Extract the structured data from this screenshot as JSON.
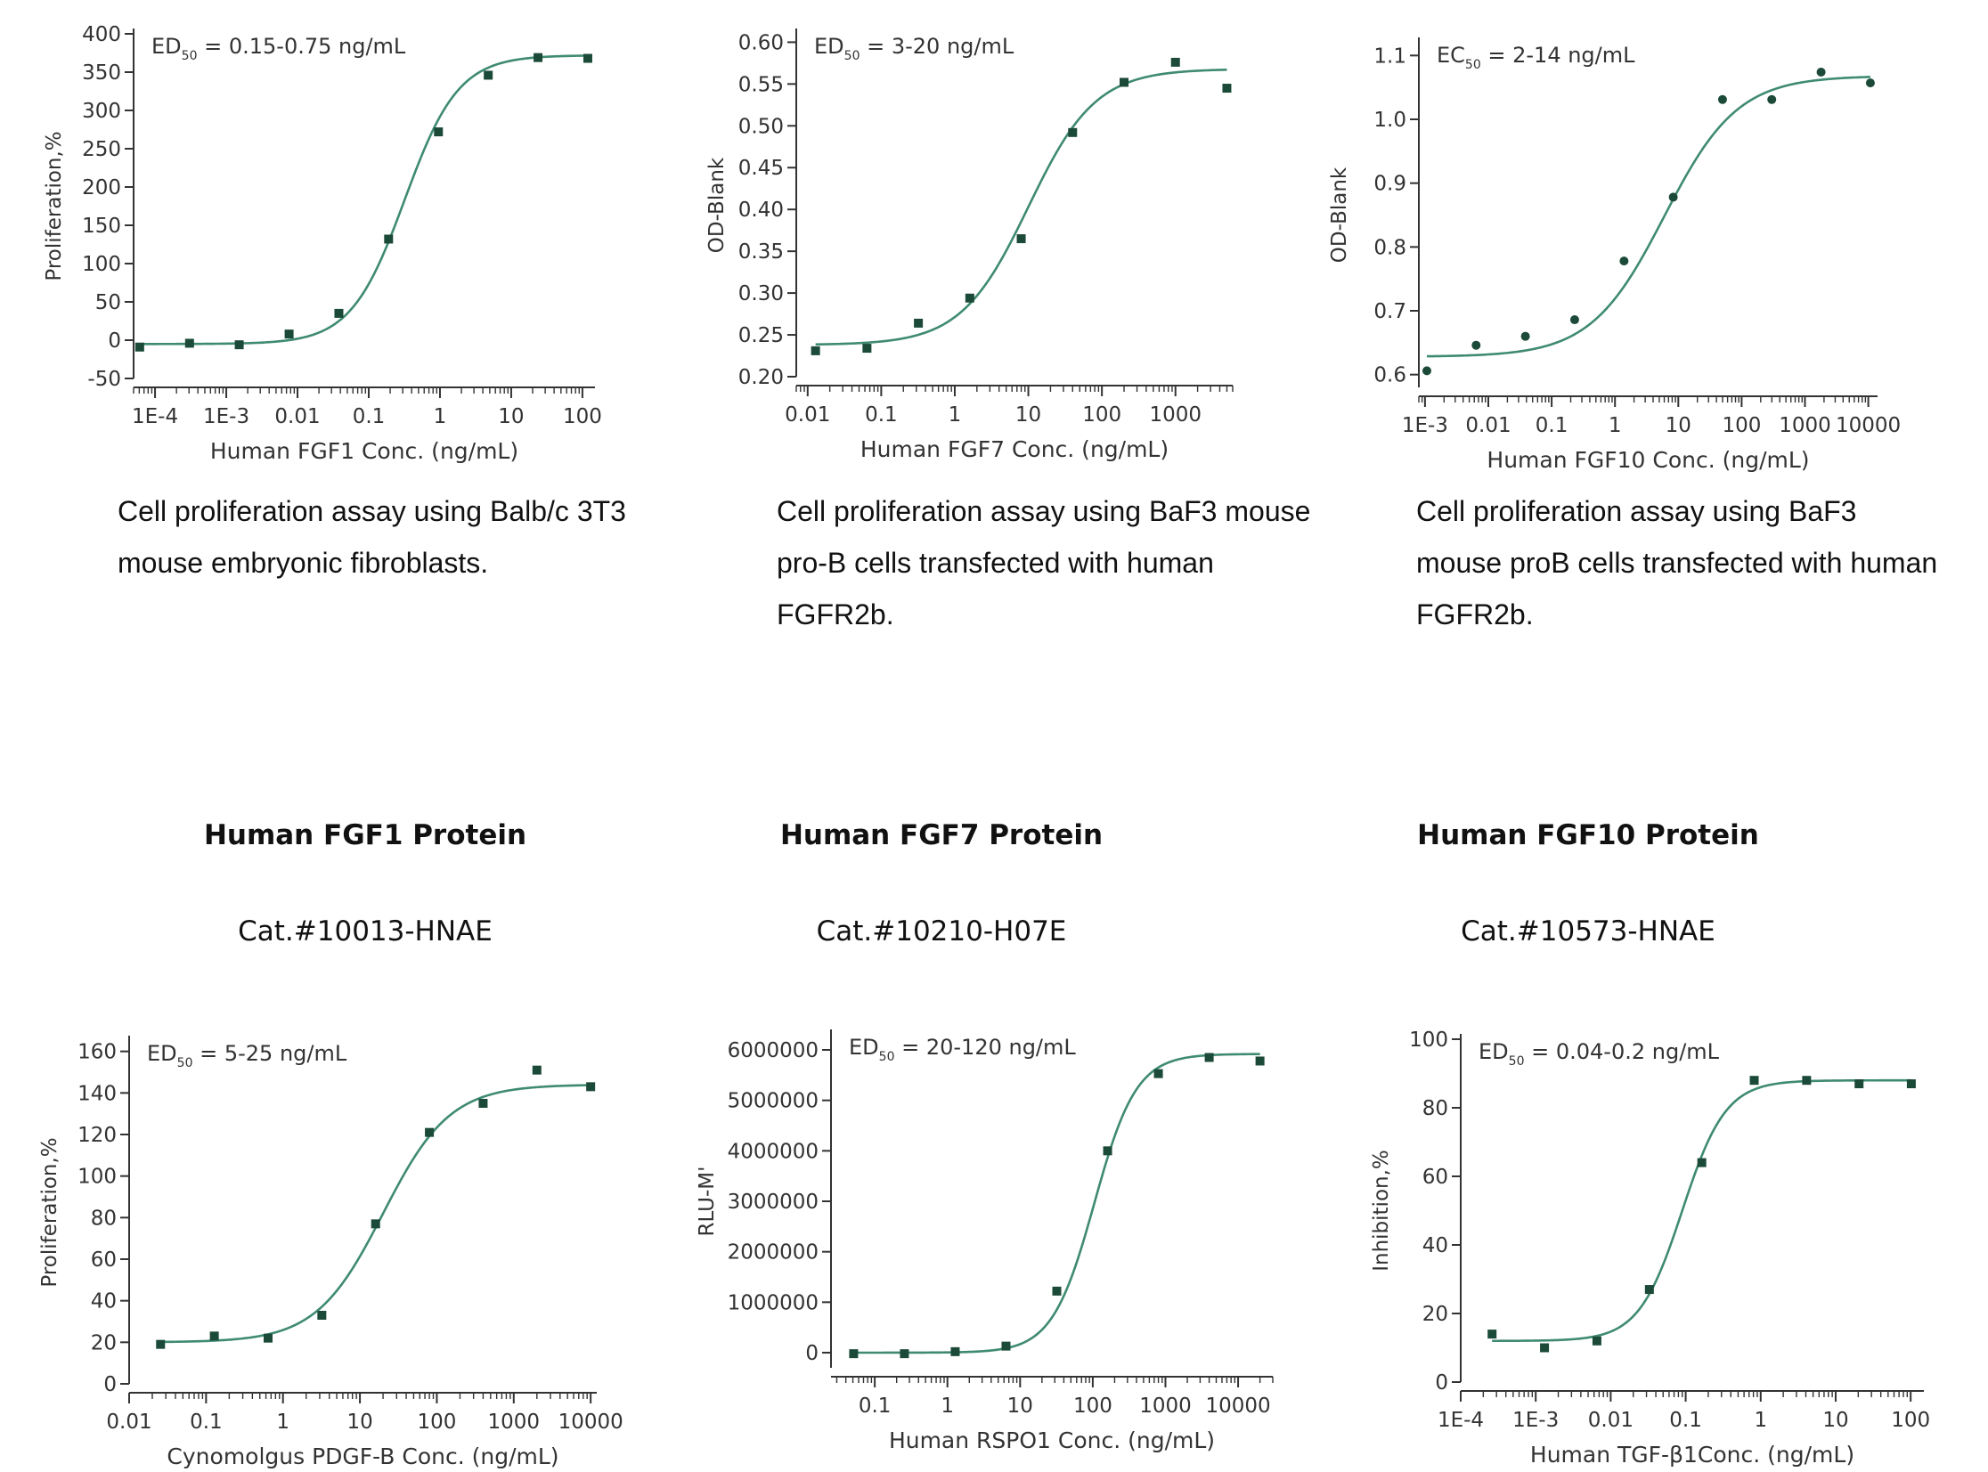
{
  "colors": {
    "curve": "#3f8a73",
    "marker": "#1c4a38",
    "axis": "#333333"
  },
  "products": [
    {
      "title": "Human FGF1 Protein",
      "catalog": "Cat.#10013-HNAE"
    },
    {
      "title": "Human FGF7 Protein",
      "catalog": "Cat.#10210-H07E"
    },
    {
      "title": "Human FGF10 Protein",
      "catalog": "Cat.#10573-HNAE"
    }
  ],
  "captions": [
    {
      "line1": "Cell proliferation assay using Balb/c 3T3",
      "line2": "mouse embryonic fibroblasts.",
      "line3": ""
    },
    {
      "line1": "Cell proliferation assay using BaF3 mouse",
      "line2": "pro-B cells transfected with human",
      "line3": "FGFR2b."
    },
    {
      "line1": "Cell proliferation assay using BaF3",
      "line2": "mouse proB cells transfected with human",
      "line3": "FGFR2b."
    }
  ],
  "chart_data": [
    {
      "type": "scatter",
      "fit": "4PL",
      "xscale": "log",
      "annotation": {
        "prefix": "ED",
        "sub": "50",
        "text": " = 0.15-0.75 ng/mL"
      },
      "xlabel": "Human FGF1 Conc. (ng/mL)",
      "ylabel": "Proliferation,%",
      "xlim": [
        5e-05,
        150
      ],
      "ylim": [
        -50,
        400
      ],
      "xticks": [
        0.0001,
        0.001,
        0.01,
        0.1,
        1,
        10,
        100
      ],
      "xtick_labels": [
        "1E-4",
        "1E-3",
        "0.01",
        "0.1",
        "1",
        "10",
        "100"
      ],
      "yticks": [
        -50,
        0,
        50,
        100,
        150,
        200,
        250,
        300,
        350,
        400
      ],
      "ytick_labels": [
        "-50",
        "0",
        "50",
        "100",
        "150",
        "200",
        "250",
        "300",
        "350",
        "400"
      ],
      "marker": "square",
      "points": [
        [
          6.09e-05,
          -9
        ],
        [
          0.000305,
          -4
        ],
        [
          0.00152,
          -6
        ],
        [
          0.00762,
          8
        ],
        [
          0.0381,
          35
        ],
        [
          0.19,
          132
        ],
        [
          0.952,
          272
        ],
        [
          4.76,
          346
        ],
        [
          23.8,
          369
        ],
        [
          119,
          368
        ]
      ],
      "fit_params": {
        "bottom": -5,
        "top": 372,
        "ec50": 0.32,
        "hill": 1.15
      }
    },
    {
      "type": "scatter",
      "fit": "4PL",
      "xscale": "log",
      "annotation": {
        "prefix": "ED",
        "sub": "50",
        "text": " = 3-20 ng/mL"
      },
      "xlabel": "Human FGF7 Conc. (ng/mL)",
      "ylabel": "OD-Blank",
      "xlim": [
        0.007,
        6000
      ],
      "ylim": [
        0.2,
        0.61
      ],
      "xticks": [
        0.01,
        0.1,
        1,
        10,
        100,
        1000
      ],
      "xtick_labels": [
        "0.01",
        "0.1",
        "1",
        "10",
        "100",
        "1000"
      ],
      "yticks": [
        0.2,
        0.25,
        0.3,
        0.35,
        0.4,
        0.45,
        0.5,
        0.55,
        0.6
      ],
      "ytick_labels": [
        "0.20",
        "0.25",
        "0.30",
        "0.35",
        "0.40",
        "0.45",
        "0.50",
        "0.55",
        "0.60"
      ],
      "marker": "square",
      "points": [
        [
          0.0128,
          0.231
        ],
        [
          0.064,
          0.234
        ],
        [
          0.32,
          0.264
        ],
        [
          1.6,
          0.294
        ],
        [
          8.0,
          0.365
        ],
        [
          40,
          0.492
        ],
        [
          200,
          0.552
        ],
        [
          1000,
          0.576
        ],
        [
          5000,
          0.545
        ]
      ],
      "fit_params": {
        "bottom": 0.238,
        "top": 0.568,
        "ec50": 10,
        "hill": 0.95
      }
    },
    {
      "type": "scatter",
      "fit": "4PL",
      "xscale": "log",
      "annotation": {
        "prefix": "EC",
        "sub": "50",
        "text": " = 2-14 ng/mL"
      },
      "xlabel": "Human FGF10 Conc. (ng/mL)",
      "ylabel": "OD-Blank",
      "xlim": [
        0.0008,
        14000
      ],
      "ylim": [
        0.58,
        1.12
      ],
      "xticks": [
        0.001,
        0.01,
        0.1,
        1,
        10,
        100,
        1000,
        10000
      ],
      "xtick_labels": [
        "1E-3",
        "0.01",
        "0.1",
        "1",
        "10",
        "100",
        "1000",
        "10000"
      ],
      "yticks": [
        0.6,
        0.7,
        0.8,
        0.9,
        1.0,
        1.1
      ],
      "ytick_labels": [
        "0.6",
        "0.7",
        "0.8",
        "0.9",
        "1.0",
        "1.1"
      ],
      "marker": "circle",
      "points": [
        [
          0.00107,
          0.606
        ],
        [
          0.00642,
          0.646
        ],
        [
          0.0385,
          0.66
        ],
        [
          0.231,
          0.686
        ],
        [
          1.39,
          0.778
        ],
        [
          8.32,
          0.878
        ],
        [
          49.9,
          1.031
        ],
        [
          299,
          1.031
        ],
        [
          1797,
          1.074
        ],
        [
          10780,
          1.057
        ]
      ],
      "fit_params": {
        "bottom": 0.628,
        "top": 1.068,
        "ec50": 6,
        "hill": 0.75
      }
    },
    {
      "type": "scatter",
      "fit": "4PL",
      "xscale": "log",
      "annotation": {
        "prefix": "ED",
        "sub": "50",
        "text": " = 5-25 ng/mL"
      },
      "xlabel": "Cynomolgus PDGF-B Conc. (ng/mL)",
      "ylabel": "Proliferation,%",
      "xlim": [
        0.01,
        12000
      ],
      "ylim": [
        0,
        165
      ],
      "xticks": [
        0.01,
        0.1,
        1,
        10,
        100,
        1000,
        10000
      ],
      "xtick_labels": [
        "0.01",
        "0.1",
        "1",
        "10",
        "100",
        "1000",
        "10000"
      ],
      "yticks": [
        0,
        20,
        40,
        60,
        80,
        100,
        120,
        140,
        160
      ],
      "ytick_labels": [
        "0",
        "20",
        "40",
        "60",
        "80",
        "100",
        "120",
        "140",
        "160"
      ],
      "marker": "square",
      "points": [
        [
          0.0256,
          19
        ],
        [
          0.128,
          23
        ],
        [
          0.64,
          22
        ],
        [
          3.2,
          33
        ],
        [
          16,
          77
        ],
        [
          80,
          121
        ],
        [
          400,
          135
        ],
        [
          2000,
          151
        ],
        [
          10000,
          143
        ]
      ],
      "fit_params": {
        "bottom": 20,
        "top": 144,
        "ec50": 20,
        "hill": 1.0
      }
    },
    {
      "type": "scatter",
      "fit": "4PL",
      "xscale": "log",
      "annotation": {
        "prefix": "ED",
        "sub": "50",
        "text": " = 20-120 ng/mL"
      },
      "xlabel": "Human RSPO1 Conc. (ng/mL)",
      "ylabel": "RLU-M'",
      "xlim": [
        0.025,
        30000
      ],
      "ylim": [
        -300000,
        6300000
      ],
      "xticks": [
        0.1,
        1,
        10,
        100,
        1000,
        10000
      ],
      "xtick_labels": [
        "0.1",
        "1",
        "10",
        "100",
        "1000",
        "10000"
      ],
      "yticks": [
        0,
        1000000,
        2000000,
        3000000,
        4000000,
        5000000,
        6000000
      ],
      "ytick_labels": [
        "0",
        "1000000",
        "2000000",
        "3000000",
        "4000000",
        "5000000",
        "6000000"
      ],
      "marker": "square",
      "points": [
        [
          0.0512,
          -20000
        ],
        [
          0.256,
          -20000
        ],
        [
          1.28,
          20000
        ],
        [
          6.4,
          130000
        ],
        [
          32,
          1220000
        ],
        [
          160,
          4000000
        ],
        [
          800,
          5530000
        ],
        [
          4000,
          5850000
        ],
        [
          20000,
          5780000
        ]
      ],
      "fit_params": {
        "bottom": 0,
        "top": 5920000,
        "ec50": 105,
        "hill": 1.5
      }
    },
    {
      "type": "scatter",
      "fit": "4PL",
      "xscale": "log",
      "annotation": {
        "prefix": "ED",
        "sub": "50",
        "text": " = 0.04-0.2 ng/mL"
      },
      "xlabel": "Human TGF-β1Conc. (ng/mL)",
      "ylabel": "Inhibition,%",
      "xlim": [
        0.0001,
        150
      ],
      "ylim": [
        0,
        100
      ],
      "xticks": [
        0.0001,
        0.001,
        0.01,
        0.1,
        1,
        10,
        100
      ],
      "xtick_labels": [
        "1E-4",
        "1E-3",
        "0.01",
        "0.1",
        "1",
        "10",
        "100"
      ],
      "yticks": [
        0,
        20,
        40,
        60,
        80,
        100
      ],
      "ytick_labels": [
        "0",
        "20",
        "40",
        "60",
        "80",
        "100"
      ],
      "marker": "square",
      "points": [
        [
          0.000262,
          14
        ],
        [
          0.00131,
          10
        ],
        [
          0.00655,
          12
        ],
        [
          0.0328,
          27
        ],
        [
          0.164,
          64
        ],
        [
          0.82,
          88
        ],
        [
          4.1,
          88
        ],
        [
          20.5,
          87
        ],
        [
          102,
          87
        ]
      ],
      "fit_params": {
        "bottom": 12,
        "top": 88,
        "ec50": 0.09,
        "hill": 1.5
      }
    }
  ]
}
